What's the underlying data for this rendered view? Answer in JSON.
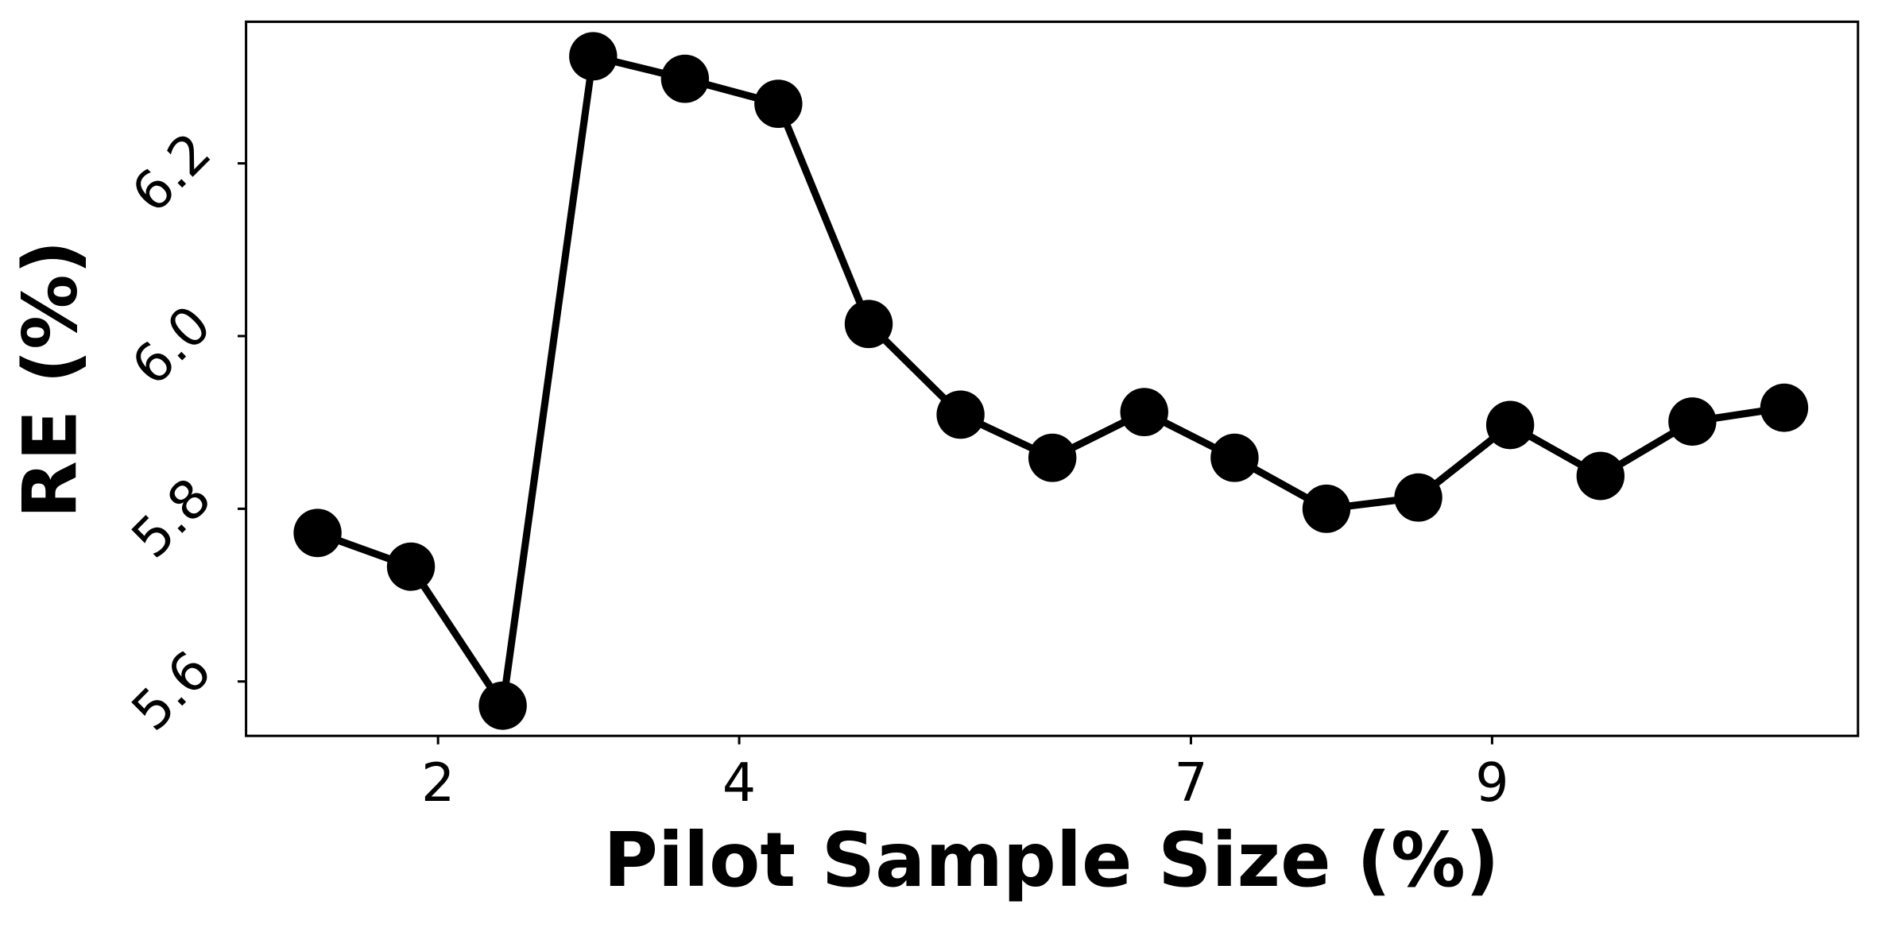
{
  "chart_data": {
    "type": "line",
    "x_label": "Pilot Sample Size (%)",
    "y_label": "RE (%)",
    "x": [
      1.2,
      1.82,
      2.43,
      3.03,
      3.64,
      4.26,
      4.86,
      5.47,
      6.08,
      6.69,
      7.29,
      7.9,
      8.51,
      9.12,
      9.72,
      10.33,
      10.94
    ],
    "series": [
      {
        "color": "#000000",
        "values": [
          5.772,
          5.733,
          5.572,
          6.324,
          6.298,
          6.269,
          6.014,
          5.909,
          5.859,
          5.912,
          5.859,
          5.8,
          5.813,
          5.897,
          5.838,
          5.901,
          5.917
        ]
      }
    ],
    "xlim": [
      0.725,
      11.43
    ],
    "xticks": [
      2,
      4,
      7,
      9
    ],
    "ylim": [
      5.537,
      6.364
    ],
    "yticks": [
      5.6,
      5.8,
      {
        "value": 6,
        "label": "6.0"
      },
      6.2
    ]
  }
}
